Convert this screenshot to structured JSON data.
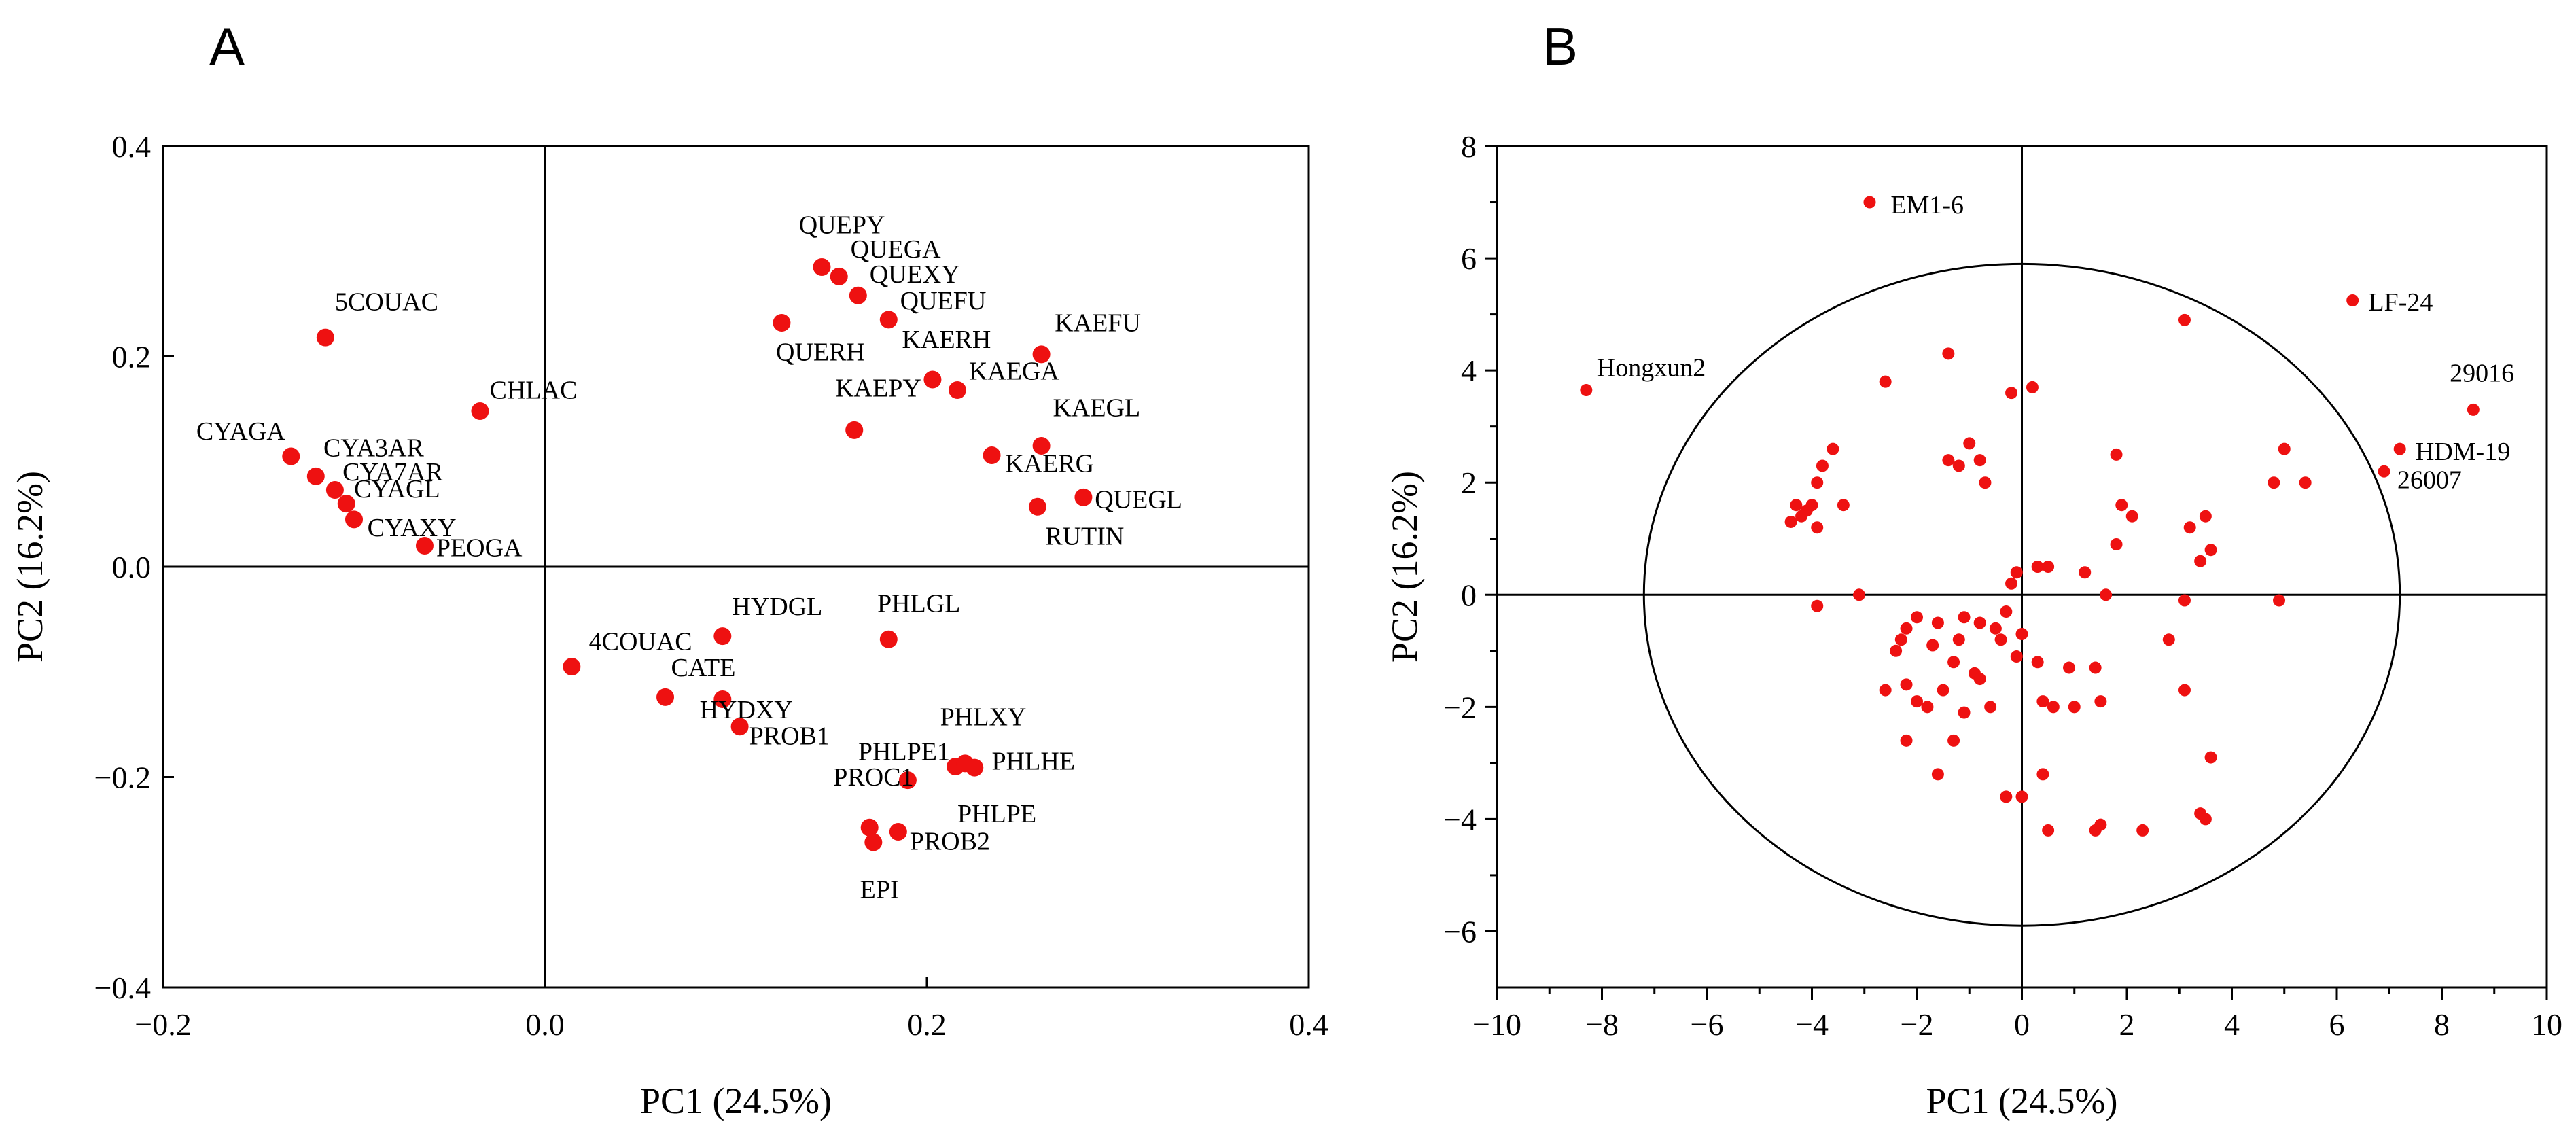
{
  "panels": [
    {
      "id": "A",
      "letter": "A",
      "type": "scatter",
      "xlabel": "PC1 (24.5%)",
      "ylabel": "PC2 (16.2%)",
      "xlim": [
        -0.2,
        0.4
      ],
      "ylim": [
        -0.4,
        0.4
      ],
      "xticks": [
        -0.2,
        0.0,
        0.2,
        0.4
      ],
      "yticks": [
        -0.4,
        -0.2,
        0.0,
        0.2,
        0.4
      ],
      "xticklabels": [
        "−0.2",
        "0.0",
        "0.2",
        "0.4"
      ],
      "yticklabels": [
        "−0.4",
        "−0.2",
        "0.0",
        "0.2",
        "0.4"
      ],
      "marker_color": "#ee1111",
      "points": [
        {
          "label": "5COUAC",
          "x": -0.115,
          "y": 0.218,
          "lx": 0.005,
          "ly": 0.026,
          "anchor": "start"
        },
        {
          "label": "CHLAC",
          "x": -0.034,
          "y": 0.148,
          "lx": 0.005,
          "ly": 0.012,
          "anchor": "start"
        },
        {
          "label": "CYAGA",
          "x": -0.133,
          "y": 0.105,
          "lx": -0.003,
          "ly": 0.016,
          "anchor": "end"
        },
        {
          "label": "CYA3AR",
          "x": -0.12,
          "y": 0.086,
          "lx": 0.004,
          "ly": 0.019,
          "anchor": "start"
        },
        {
          "label": "CYA7AR",
          "x": -0.11,
          "y": 0.073,
          "lx": 0.004,
          "ly": 0.009,
          "anchor": "start"
        },
        {
          "label": "CYAGL",
          "x": -0.104,
          "y": 0.06,
          "lx": 0.004,
          "ly": 0.006,
          "anchor": "start"
        },
        {
          "label": "CYAXY",
          "x": -0.1,
          "y": 0.045,
          "lx": 0.007,
          "ly": -0.016,
          "anchor": "start"
        },
        {
          "label": "PEOGA",
          "x": -0.063,
          "y": 0.02,
          "lx": 0.006,
          "ly": -0.01,
          "anchor": "start"
        },
        {
          "label": "QUEPY",
          "x": 0.145,
          "y": 0.285,
          "lx": -0.012,
          "ly": 0.032,
          "anchor": "start"
        },
        {
          "label": "QUEGA",
          "x": 0.154,
          "y": 0.276,
          "lx": 0.006,
          "ly": 0.018,
          "anchor": "start"
        },
        {
          "label": "QUEXY",
          "x": 0.164,
          "y": 0.258,
          "lx": 0.006,
          "ly": 0.012,
          "anchor": "start"
        },
        {
          "label": "QUEFU",
          "x": 0.18,
          "y": 0.235,
          "lx": 0.006,
          "ly": 0.01,
          "anchor": "start"
        },
        {
          "label": "QUERH",
          "x": 0.124,
          "y": 0.232,
          "lx": -0.003,
          "ly": -0.036,
          "anchor": "start"
        },
        {
          "label": "KAERH",
          "x": 0.203,
          "y": 0.178,
          "lx": -0.016,
          "ly": 0.03,
          "anchor": "start"
        },
        {
          "label": "KAEGA",
          "x": 0.216,
          "y": 0.168,
          "lx": 0.006,
          "ly": 0.01,
          "anchor": "start"
        },
        {
          "label": "KAEFU",
          "x": 0.26,
          "y": 0.202,
          "lx": 0.007,
          "ly": 0.022,
          "anchor": "start"
        },
        {
          "label": "KAEPY",
          "x": 0.162,
          "y": 0.13,
          "lx": -0.01,
          "ly": 0.032,
          "anchor": "start"
        },
        {
          "label": "KAEGL",
          "x": 0.26,
          "y": 0.115,
          "lx": 0.006,
          "ly": 0.028,
          "anchor": "start"
        },
        {
          "label": "KAERG",
          "x": 0.234,
          "y": 0.106,
          "lx": 0.007,
          "ly": -0.016,
          "anchor": "start"
        },
        {
          "label": "QUEGL",
          "x": 0.282,
          "y": 0.066,
          "lx": 0.006,
          "ly": -0.01,
          "anchor": "start"
        },
        {
          "label": "RUTIN",
          "x": 0.258,
          "y": 0.057,
          "lx": 0.004,
          "ly": -0.036,
          "anchor": "start"
        },
        {
          "label": "HYDGL",
          "x": 0.093,
          "y": -0.066,
          "lx": 0.005,
          "ly": 0.02,
          "anchor": "start"
        },
        {
          "label": "PHLGL",
          "x": 0.18,
          "y": -0.069,
          "lx": -0.006,
          "ly": 0.026,
          "anchor": "start"
        },
        {
          "label": "4COUAC",
          "x": 0.014,
          "y": -0.095,
          "lx": 0.009,
          "ly": 0.016,
          "anchor": "start"
        },
        {
          "label": "CATE",
          "x": 0.063,
          "y": -0.124,
          "lx": 0.003,
          "ly": 0.02,
          "anchor": "start"
        },
        {
          "label": "HYDXY",
          "x": 0.093,
          "y": -0.126,
          "lx": -0.012,
          "ly": -0.018,
          "anchor": "start"
        },
        {
          "label": "PROB1",
          "x": 0.102,
          "y": -0.152,
          "lx": 0.005,
          "ly": -0.017,
          "anchor": "start"
        },
        {
          "label": "PHLPE1",
          "x": 0.215,
          "y": -0.19,
          "lx": -0.051,
          "ly": 0.006,
          "anchor": "start"
        },
        {
          "label": "PHLXY",
          "x": 0.22,
          "y": -0.187,
          "lx": -0.013,
          "ly": 0.036,
          "anchor": "start"
        },
        {
          "label": "PHLHE",
          "x": 0.225,
          "y": -0.191,
          "lx": 0.009,
          "ly": -0.002,
          "anchor": "start"
        },
        {
          "label": "PHLPE",
          "x": 0.19,
          "y": -0.203,
          "lx": 0.026,
          "ly": -0.04,
          "anchor": "start"
        },
        {
          "label": "PROC1",
          "x": 0.17,
          "y": -0.248,
          "lx": -0.019,
          "ly": 0.04,
          "anchor": "start"
        },
        {
          "label": "PROB2",
          "x": 0.185,
          "y": -0.252,
          "lx": 0.006,
          "ly": -0.017,
          "anchor": "start"
        },
        {
          "label": "EPI",
          "x": 0.172,
          "y": -0.262,
          "lx": -0.007,
          "ly": -0.053,
          "anchor": "start"
        }
      ]
    },
    {
      "id": "B",
      "letter": "B",
      "type": "scatter",
      "xlabel": "PC1 (24.5%)",
      "ylabel": "PC2 (16.2%)",
      "xlim": [
        -10,
        10
      ],
      "ylim": [
        -7,
        8
      ],
      "xticks": [
        -10,
        -8,
        -6,
        -4,
        -2,
        0,
        2,
        4,
        6,
        8,
        10
      ],
      "yticks": [
        -6,
        -4,
        -2,
        0,
        2,
        4,
        6,
        8
      ],
      "xticklabels": [
        "−10",
        "−8",
        "−6",
        "−4",
        "−2",
        "0",
        "2",
        "4",
        "6",
        "8",
        "10"
      ],
      "yticklabels": [
        "−6",
        "−4",
        "−2",
        "0",
        "2",
        "4",
        "6",
        "8"
      ],
      "marker_color": "#ee1111",
      "circle": {
        "cx": 0,
        "cy": 0,
        "rx": 7.2,
        "ry": 5.9
      },
      "labeled_points": [
        {
          "label": "EM1-6",
          "x": -2.9,
          "y": 7.0,
          "lx": 0.4,
          "ly": -0.2,
          "anchor": "start"
        },
        {
          "label": "LF-24",
          "x": 6.3,
          "y": 5.25,
          "lx": 0.3,
          "ly": -0.18,
          "anchor": "start"
        },
        {
          "label": "Hongxun2",
          "x": -8.3,
          "y": 3.65,
          "lx": 0.2,
          "ly": 0.25,
          "anchor": "start"
        },
        {
          "label": "29016",
          "x": 8.6,
          "y": 3.3,
          "lx": -0.45,
          "ly": 0.5,
          "anchor": "start"
        },
        {
          "label": "HDM-19",
          "x": 7.2,
          "y": 2.6,
          "lx": 0.3,
          "ly": -0.2,
          "anchor": "start"
        },
        {
          "label": "26007",
          "x": 6.9,
          "y": 2.2,
          "lx": 0.25,
          "ly": -0.3,
          "anchor": "start"
        }
      ],
      "points": [
        [
          -1.4,
          4.3
        ],
        [
          -2.6,
          3.8
        ],
        [
          0.2,
          3.7
        ],
        [
          -0.2,
          3.6
        ],
        [
          3.1,
          4.9
        ],
        [
          -3.6,
          2.6
        ],
        [
          -3.8,
          2.3
        ],
        [
          -3.9,
          2.0
        ],
        [
          -4.3,
          1.6
        ],
        [
          -4.1,
          1.5
        ],
        [
          -4.4,
          1.3
        ],
        [
          -4.0,
          1.6
        ],
        [
          -4.2,
          1.4
        ],
        [
          -3.9,
          1.2
        ],
        [
          -3.4,
          1.6
        ],
        [
          -1.0,
          2.7
        ],
        [
          -0.8,
          2.4
        ],
        [
          -1.4,
          2.4
        ],
        [
          -1.2,
          2.3
        ],
        [
          -0.7,
          2.0
        ],
        [
          1.8,
          2.5
        ],
        [
          1.9,
          1.6
        ],
        [
          2.1,
          1.4
        ],
        [
          1.8,
          0.9
        ],
        [
          3.2,
          1.2
        ],
        [
          3.5,
          1.4
        ],
        [
          3.6,
          0.8
        ],
        [
          3.4,
          0.6
        ],
        [
          4.8,
          2.0
        ],
        [
          5.0,
          2.6
        ],
        [
          5.4,
          2.0
        ],
        [
          0.3,
          0.5
        ],
        [
          0.5,
          0.5
        ],
        [
          1.2,
          0.4
        ],
        [
          1.6,
          0.0
        ],
        [
          3.1,
          -0.1
        ],
        [
          4.9,
          -0.1
        ],
        [
          -0.1,
          0.4
        ],
        [
          -0.2,
          0.2
        ],
        [
          -3.1,
          0.0
        ],
        [
          -3.9,
          -0.2
        ],
        [
          -2.0,
          -0.4
        ],
        [
          -2.2,
          -0.6
        ],
        [
          -1.6,
          -0.5
        ],
        [
          -1.1,
          -0.4
        ],
        [
          -0.3,
          -0.3
        ],
        [
          -0.5,
          -0.6
        ],
        [
          -0.8,
          -0.5
        ],
        [
          -2.3,
          -0.8
        ],
        [
          -2.4,
          -1.0
        ],
        [
          -1.7,
          -0.9
        ],
        [
          -1.2,
          -0.8
        ],
        [
          -1.3,
          -1.2
        ],
        [
          -0.4,
          -0.8
        ],
        [
          0.0,
          -0.7
        ],
        [
          -0.1,
          -1.1
        ],
        [
          0.3,
          -1.2
        ],
        [
          0.9,
          -1.3
        ],
        [
          1.4,
          -1.3
        ],
        [
          2.8,
          -0.8
        ],
        [
          -2.6,
          -1.7
        ],
        [
          -2.2,
          -1.6
        ],
        [
          -1.5,
          -1.7
        ],
        [
          -0.9,
          -1.4
        ],
        [
          -0.8,
          -1.5
        ],
        [
          -1.1,
          -2.1
        ],
        [
          -1.8,
          -2.0
        ],
        [
          -2.0,
          -1.9
        ],
        [
          -0.6,
          -2.0
        ],
        [
          0.4,
          -1.9
        ],
        [
          0.6,
          -2.0
        ],
        [
          1.0,
          -2.0
        ],
        [
          1.5,
          -1.9
        ],
        [
          3.1,
          -1.7
        ],
        [
          3.6,
          -2.9
        ],
        [
          -2.2,
          -2.6
        ],
        [
          -1.3,
          -2.6
        ],
        [
          -1.6,
          -3.2
        ],
        [
          0.4,
          -3.2
        ],
        [
          0.0,
          -3.6
        ],
        [
          -0.3,
          -3.6
        ],
        [
          0.5,
          -4.2
        ],
        [
          1.5,
          -4.1
        ],
        [
          1.4,
          -4.2
        ],
        [
          2.3,
          -4.2
        ],
        [
          3.4,
          -3.9
        ],
        [
          3.5,
          -4.0
        ]
      ]
    }
  ]
}
